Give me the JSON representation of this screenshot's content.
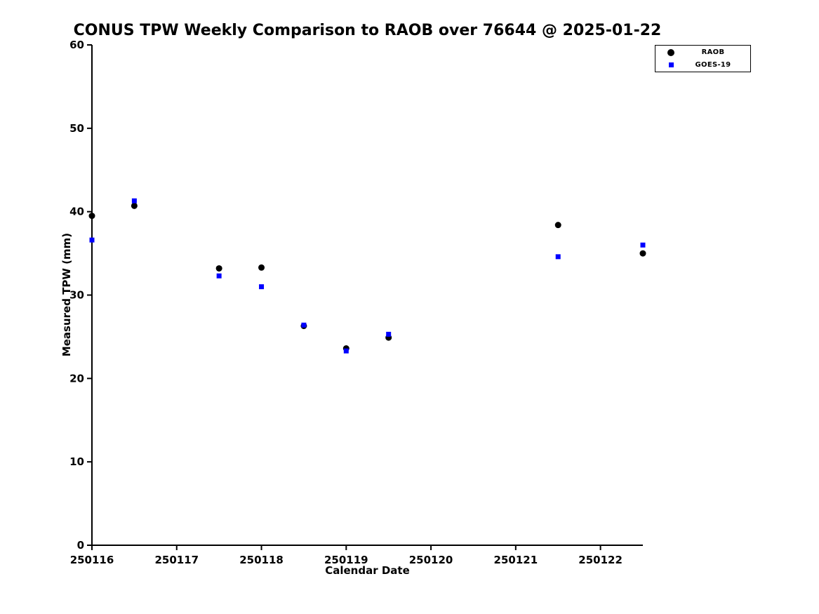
{
  "chart_data": {
    "type": "scatter",
    "title": "CONUS TPW Weekly Comparison to RAOB over 76644 @ 2025-01-22",
    "xlabel": "Calendar Date",
    "ylabel": "Measured TPW (mm)",
    "xlim": [
      250116,
      250122.5
    ],
    "ylim": [
      0,
      60
    ],
    "x_ticks": [
      250116,
      250117,
      250118,
      250119,
      250120,
      250121,
      250122
    ],
    "y_ticks": [
      0,
      10,
      20,
      30,
      40,
      50,
      60
    ],
    "grid": false,
    "legend_position": "top-right",
    "series": [
      {
        "name": "RAOB",
        "marker": "circle",
        "color": "#000000",
        "points": [
          {
            "x": 250116.0,
            "y": 39.5
          },
          {
            "x": 250116.5,
            "y": 40.7
          },
          {
            "x": 250117.5,
            "y": 33.2
          },
          {
            "x": 250118.0,
            "y": 33.3
          },
          {
            "x": 250118.5,
            "y": 26.3
          },
          {
            "x": 250119.0,
            "y": 23.6
          },
          {
            "x": 250119.5,
            "y": 24.9
          },
          {
            "x": 250121.5,
            "y": 38.4
          },
          {
            "x": 250122.5,
            "y": 35.0
          }
        ]
      },
      {
        "name": "GOES-19",
        "marker": "square",
        "color": "#0000ff",
        "points": [
          {
            "x": 250116.0,
            "y": 36.6
          },
          {
            "x": 250116.5,
            "y": 41.3
          },
          {
            "x": 250117.5,
            "y": 32.3
          },
          {
            "x": 250118.0,
            "y": 31.0
          },
          {
            "x": 250118.5,
            "y": 26.4
          },
          {
            "x": 250119.0,
            "y": 23.3
          },
          {
            "x": 250119.5,
            "y": 25.3
          },
          {
            "x": 250121.5,
            "y": 34.6
          },
          {
            "x": 250122.5,
            "y": 36.0
          }
        ]
      }
    ]
  }
}
